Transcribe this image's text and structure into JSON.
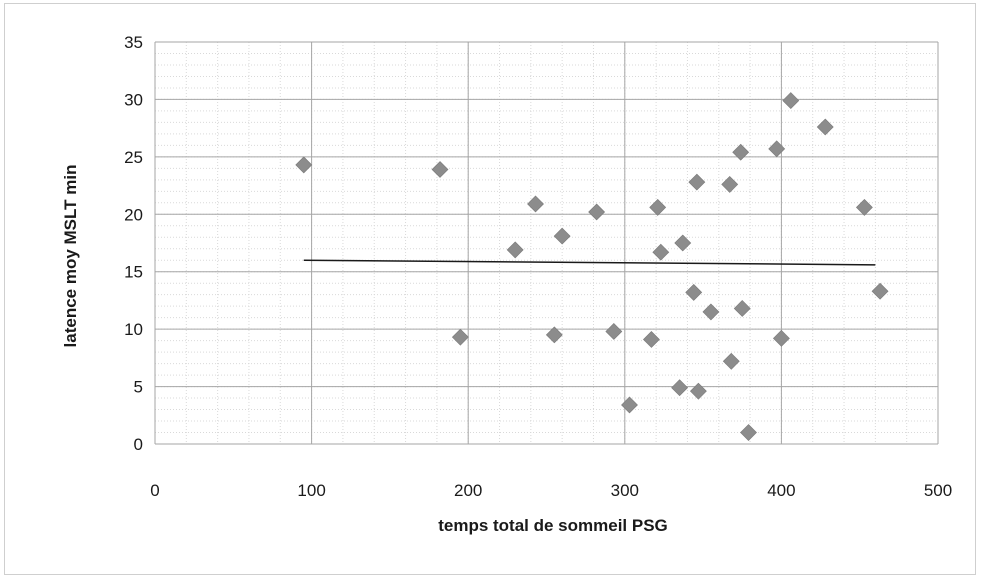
{
  "chart_data": {
    "type": "scatter",
    "title": "",
    "xlabel": "temps total de sommeil PSG",
    "ylabel": "latence moy MSLT min",
    "xlim": [
      0,
      500
    ],
    "ylim": [
      0,
      35
    ],
    "x_ticks": [
      0,
      100,
      200,
      300,
      400,
      500
    ],
    "y_ticks": [
      0,
      5,
      10,
      15,
      20,
      25,
      30,
      35
    ],
    "grid": true,
    "legend": "none",
    "marker_color": "#8c8c8c",
    "trendline": {
      "x": [
        95,
        460
      ],
      "y": [
        16.0,
        15.6
      ],
      "color": "#1a1a1a"
    },
    "series": [
      {
        "points": [
          {
            "x": 95,
            "y": 24.3
          },
          {
            "x": 182,
            "y": 23.9
          },
          {
            "x": 195,
            "y": 9.3
          },
          {
            "x": 230,
            "y": 16.9
          },
          {
            "x": 243,
            "y": 20.9
          },
          {
            "x": 255,
            "y": 9.5
          },
          {
            "x": 260,
            "y": 18.1
          },
          {
            "x": 282,
            "y": 20.2
          },
          {
            "x": 293,
            "y": 9.8
          },
          {
            "x": 303,
            "y": 3.4
          },
          {
            "x": 317,
            "y": 9.1
          },
          {
            "x": 321,
            "y": 20.6
          },
          {
            "x": 323,
            "y": 16.7
          },
          {
            "x": 335,
            "y": 4.9
          },
          {
            "x": 337,
            "y": 17.5
          },
          {
            "x": 344,
            "y": 13.2
          },
          {
            "x": 346,
            "y": 22.8
          },
          {
            "x": 347,
            "y": 4.6
          },
          {
            "x": 355,
            "y": 11.5
          },
          {
            "x": 367,
            "y": 22.6
          },
          {
            "x": 368,
            "y": 7.2
          },
          {
            "x": 374,
            "y": 25.4
          },
          {
            "x": 375,
            "y": 11.8
          },
          {
            "x": 379,
            "y": 1.0
          },
          {
            "x": 397,
            "y": 25.7
          },
          {
            "x": 400,
            "y": 9.2
          },
          {
            "x": 406,
            "y": 29.9
          },
          {
            "x": 428,
            "y": 27.6
          },
          {
            "x": 453,
            "y": 20.6
          },
          {
            "x": 463,
            "y": 13.3
          }
        ]
      }
    ]
  }
}
